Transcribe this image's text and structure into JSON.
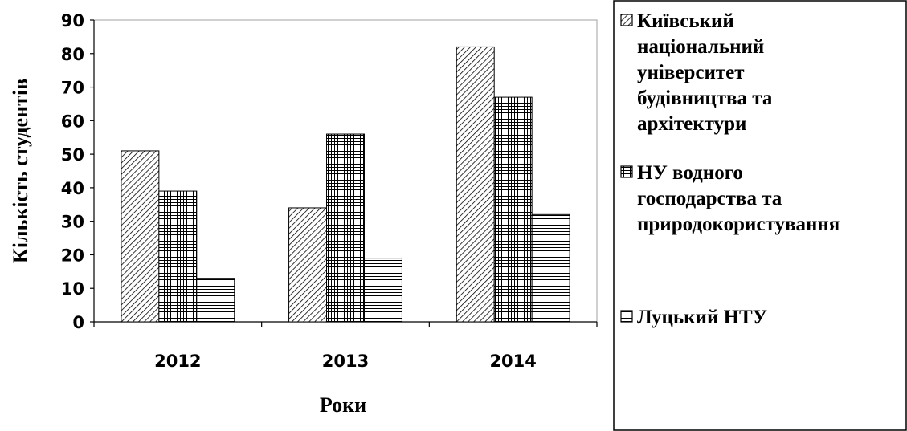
{
  "chart_data": {
    "type": "bar",
    "categories": [
      "2012",
      "2013",
      "2014"
    ],
    "series": [
      {
        "name": "Київський національний університет будівництва та архітектури",
        "name_lines": [
          "Київський",
          "національний",
          "університет",
          "будівництва та",
          "архітектури"
        ],
        "pattern": "diagonal-hatch",
        "values": [
          51,
          34,
          82
        ]
      },
      {
        "name": "НУ водного господарства та природокористування",
        "name_lines": [
          "НУ водного",
          "господарства та",
          "природокористування"
        ],
        "pattern": "grid-hatch",
        "values": [
          39,
          56,
          67
        ]
      },
      {
        "name": "Луцький НТУ",
        "name_lines": [
          "Луцький НТУ"
        ],
        "pattern": "horizontal-hatch",
        "values": [
          13,
          19,
          32
        ]
      }
    ],
    "xlabel": "Роки",
    "ylabel": "Кількість студентів",
    "ylim": [
      0,
      90
    ],
    "yticks": [
      "0",
      "10",
      "20",
      "30",
      "40",
      "50",
      "60",
      "70",
      "80",
      "90"
    ],
    "grid": false,
    "legend_position": "right"
  },
  "colors": {
    "bar_fill": "#ffffff",
    "hatch": "#000000",
    "plot_border": "#a0a0a0",
    "axis": "#000000",
    "legend_border": "#000000"
  }
}
